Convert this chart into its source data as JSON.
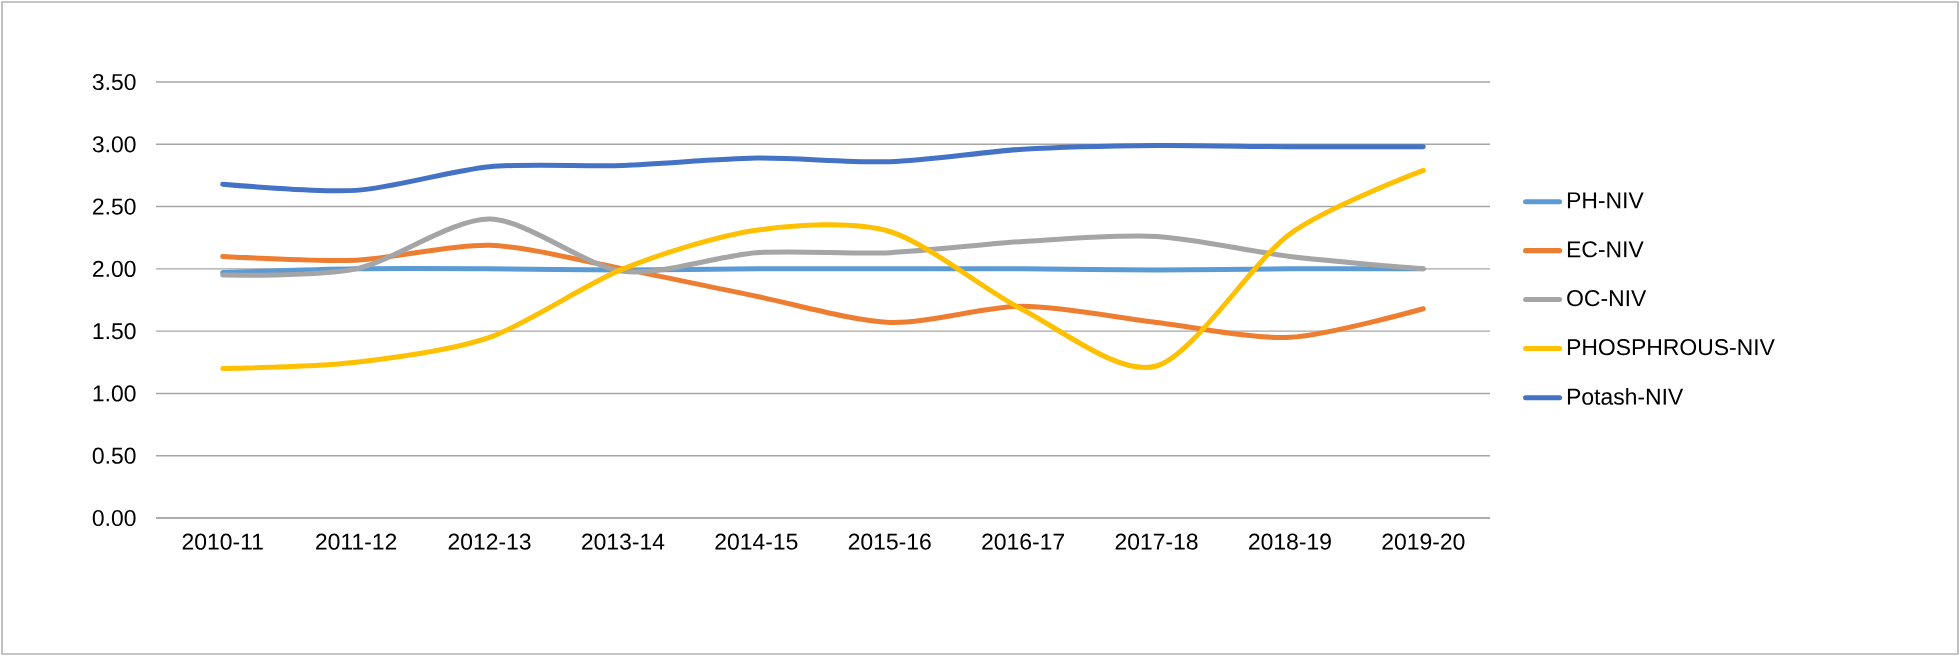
{
  "chart_data": {
    "type": "line",
    "categories": [
      "2010-11",
      "2011-12",
      "2012-13",
      "2013-14",
      "2014-15",
      "2015-16",
      "2016-17",
      "2017-18",
      "2018-19",
      "2019-20"
    ],
    "series": [
      {
        "name": "PH-NIV",
        "color": "#5b9bd5",
        "values": [
          1.97,
          2.0,
          2.0,
          1.99,
          2.0,
          2.0,
          2.0,
          1.99,
          2.0,
          2.0
        ]
      },
      {
        "name": "EC-NIV",
        "color": "#ed7d31",
        "values": [
          2.1,
          2.07,
          2.19,
          2.0,
          1.78,
          1.57,
          1.7,
          1.57,
          1.45,
          1.68
        ]
      },
      {
        "name": "OC-NIV",
        "color": "#a5a5a5",
        "values": [
          1.95,
          2.0,
          2.4,
          1.98,
          2.13,
          2.13,
          2.22,
          2.26,
          2.1,
          2.0
        ]
      },
      {
        "name": "PHOSPHROUS-NIV",
        "color": "#ffc000",
        "values": [
          1.2,
          1.25,
          1.45,
          2.0,
          2.31,
          2.3,
          1.67,
          1.22,
          2.28,
          2.79
        ]
      },
      {
        "name": "Potash-NIV",
        "color": "#4472c4",
        "values": [
          2.68,
          2.63,
          2.82,
          2.83,
          2.89,
          2.86,
          2.96,
          2.99,
          2.98,
          2.98
        ]
      }
    ],
    "ylim": [
      0,
      3.5
    ],
    "yticks": [
      {
        "value": 0,
        "label": "0.00"
      },
      {
        "value": 0.5,
        "label": "0.50"
      },
      {
        "value": 1,
        "label": "1.00"
      },
      {
        "value": 1.5,
        "label": "1.50"
      },
      {
        "value": 2,
        "label": "2.00"
      },
      {
        "value": 2.5,
        "label": "2.50"
      },
      {
        "value": 3,
        "label": "3.00"
      },
      {
        "value": 3.5,
        "label": "3.50"
      }
    ],
    "grid": "y",
    "legend": "right",
    "marker": "none",
    "line_style": "solid"
  }
}
